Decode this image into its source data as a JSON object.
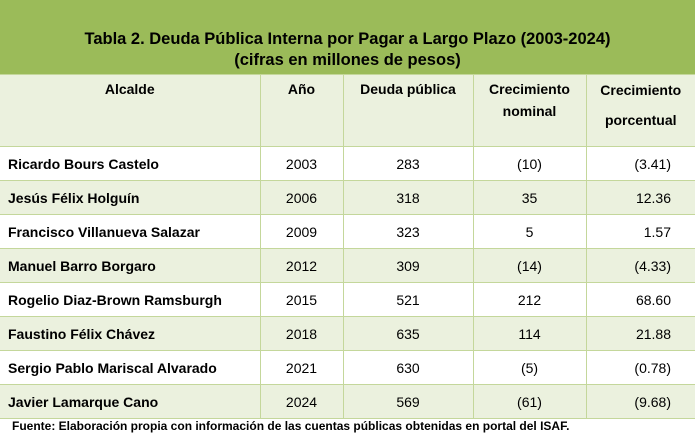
{
  "title": "Tabla 2. Deuda Pública Interna por Pagar a Largo Plazo (2003-2024)",
  "subtitle": "(cifras en millones de pesos)",
  "headers": [
    "Alcalde",
    "Año",
    "Deuda pública",
    "Crecimiento nominal",
    "Crecimiento porcentual"
  ],
  "rows": [
    [
      "Ricardo Bours Castelo",
      "2003",
      "283",
      "(10)",
      "(3.41)"
    ],
    [
      "Jesús Félix Holguín",
      "2006",
      "318",
      "35",
      "12.36"
    ],
    [
      "Francisco Villanueva Salazar",
      "2009",
      "323",
      "5",
      "1.57"
    ],
    [
      "Manuel Barro Borgaro",
      "2012",
      "309",
      "(14)",
      "(4.33)"
    ],
    [
      "Rogelio Diaz-Brown Ramsburgh",
      "2015",
      "521",
      "212",
      "68.60"
    ],
    [
      "Faustino Félix Chávez",
      "2018",
      "635",
      "114",
      "21.88"
    ],
    [
      "Sergio Pablo Mariscal Alvarado",
      "2021",
      "630",
      "(5)",
      "(0.78)"
    ],
    [
      "Javier Lamarque Cano",
      "2024",
      "569",
      "(61)",
      "(9.68)"
    ]
  ],
  "footer": "Fuente: Elaboración propia con información de las cuentas públicas obtenidas en portal del ISAF.",
  "colors": {
    "title_bg": "#9bbb59",
    "alt_bg": "#ebf1de",
    "grid": "#c4d79b"
  }
}
